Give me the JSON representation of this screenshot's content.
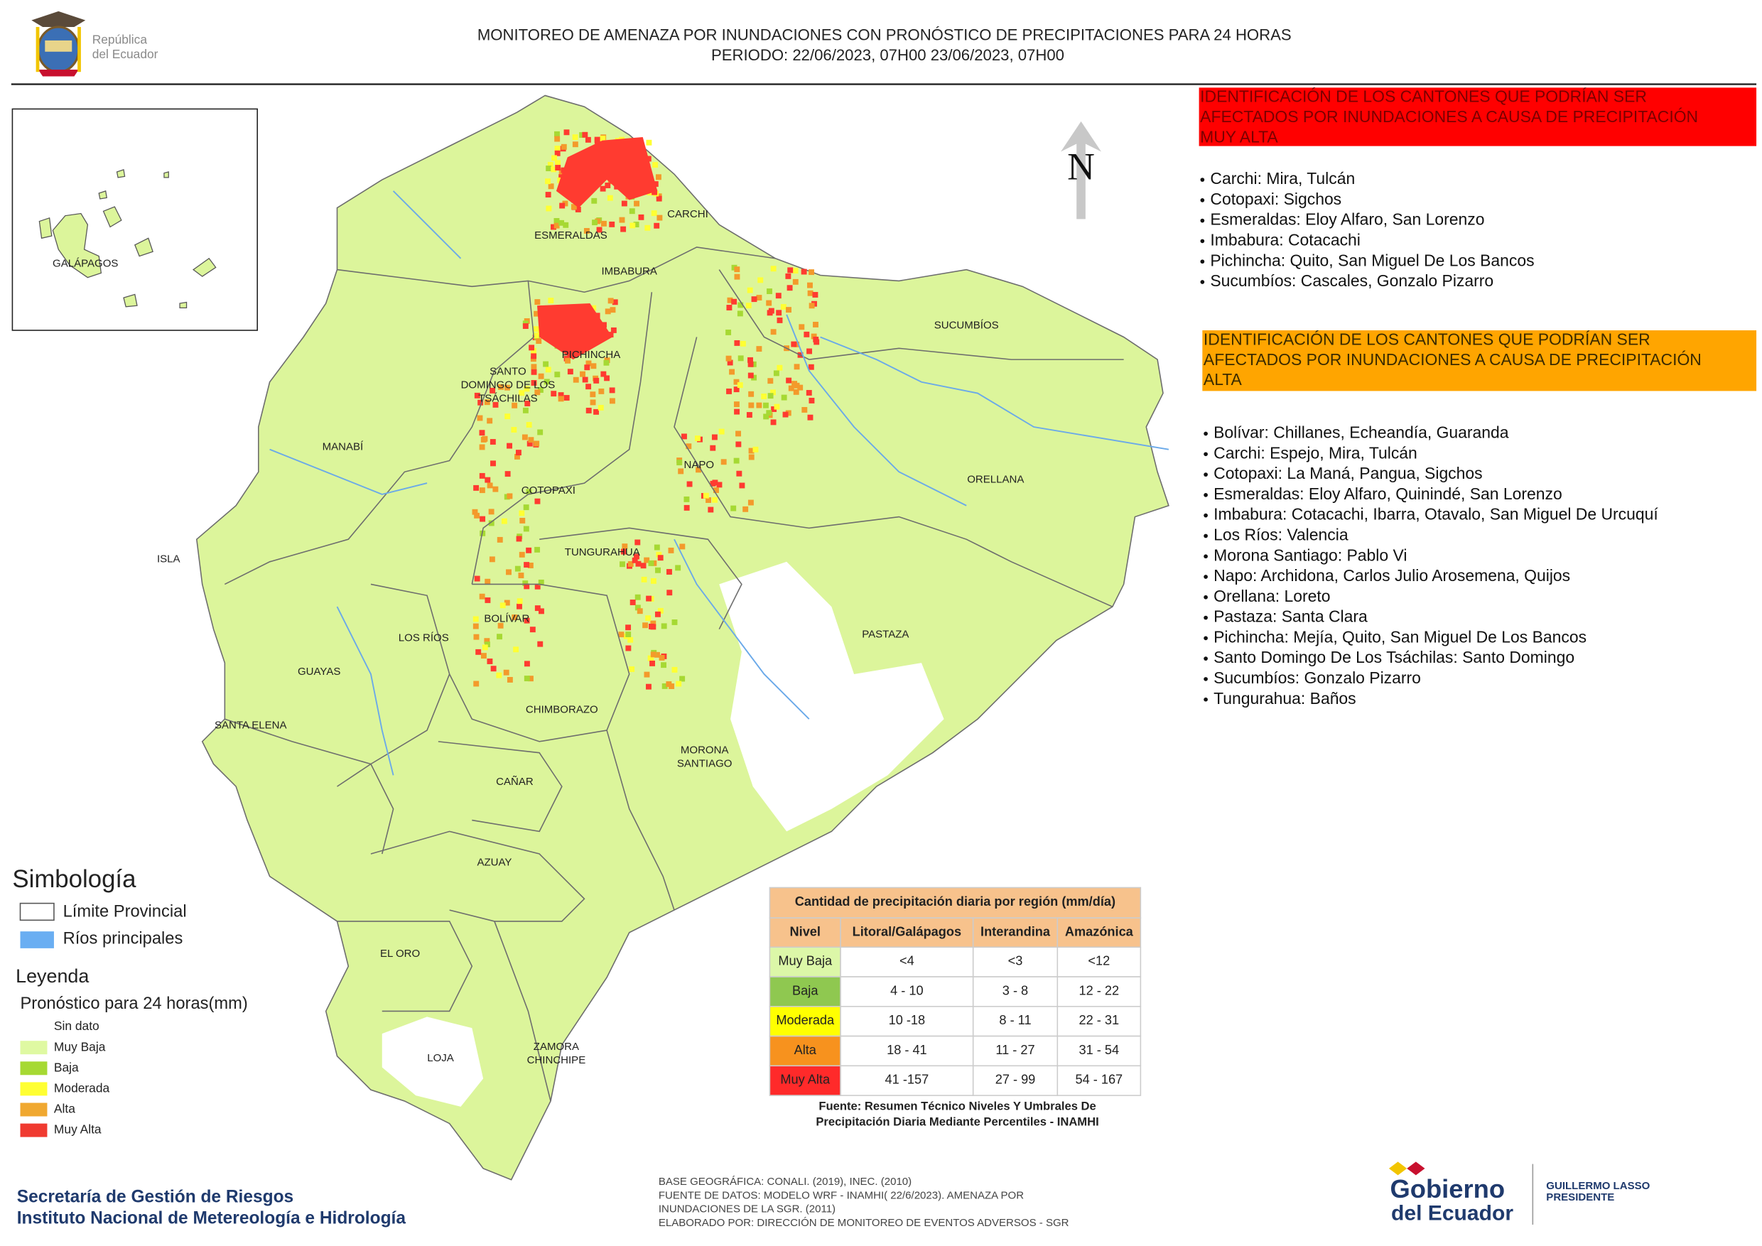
{
  "header": {
    "logo_text": [
      "República",
      "del Ecuador"
    ],
    "title": [
      "MONITOREO DE AMENAZA POR INUNDACIONES  CON PRONÓSTICO DE  PRECIPITACIONES PARA 24 HORAS",
      "PERIODO: 22/06/2023, 07H00 23/06/2023, 07H00"
    ]
  },
  "map": {
    "north": "N",
    "provinces": [
      [
        "GALÁPAGOS"
      ],
      [
        "ESMERALDAS"
      ],
      [
        "CARCHI"
      ],
      [
        "IMBABURA"
      ],
      [
        "SUCUMBÍOS"
      ],
      [
        "PICHINCHA"
      ],
      [
        "SANTO",
        "DOMINGO DE LOS",
        "TSÁCHILAS"
      ],
      [
        "MANABÍ"
      ],
      [
        "NAPO"
      ],
      [
        "ORELLANA"
      ],
      [
        "COTOPAXI"
      ],
      [
        "ISLA"
      ],
      [
        "TUNGURAHUA"
      ],
      [
        "PASTAZA"
      ],
      [
        "BOLÍVAR"
      ],
      [
        "LOS RÍOS"
      ],
      [
        "GUAYAS"
      ],
      [
        "CHIMBORAZO"
      ],
      [
        "SANTA ELENA"
      ],
      [
        "MORONA",
        "SANTIAGO"
      ],
      [
        "CAÑAR"
      ],
      [
        "AZUAY"
      ],
      [
        "EL ORO"
      ],
      [
        "ZAMORA",
        "CHINCHIPE"
      ],
      [
        "LOJA"
      ]
    ]
  },
  "muy_alta": {
    "heading": [
      "IDENTIFICACIÓN DE LOS CANTONES QUE PODRÍAN SER",
      "AFECTADOS POR INUNDACIONES  A CAUSA DE PRECIPITACIÓN",
      "MUY ALTA"
    ],
    "items": [
      "Carchi: Mira, Tulcán",
      "Cotopaxi: Sigchos",
      "Esmeraldas: Eloy Alfaro, San Lorenzo",
      "Imbabura: Cotacachi",
      "Pichincha: Quito, San Miguel De Los Bancos",
      "Sucumbíos: Cascales, Gonzalo Pizarro"
    ]
  },
  "alta": {
    "heading": [
      "IDENTIFICACIÓN DE LOS CANTONES QUE  PODRÍAN SER",
      "AFECTADOS POR INUNDACIONES  A CAUSA DE PRECIPITACIÓN",
      "ALTA"
    ],
    "items": [
      "Bolívar: Chillanes, Echeandía, Guaranda",
      "Carchi: Espejo, Mira, Tulcán",
      "Cotopaxi: La Maná, Pangua, Sigchos",
      "Esmeraldas: Eloy Alfaro, Quinindé, San Lorenzo",
      "Imbabura: Cotacachi, Ibarra, Otavalo, San Miguel De Urcuquí",
      "Los Ríos: Valencia",
      "Morona Santiago: Pablo Vi",
      "Napo: Archidona, Carlos Julio Arosemena, Quijos",
      "Orellana: Loreto",
      "Pastaza: Santa Clara",
      "Pichincha: Mejía, Quito, San Miguel De Los Bancos",
      "Santo Domingo De Los Tsáchilas: Santo Domingo",
      "Sucumbíos: Gonzalo Pizarro",
      "Tungurahua: Baños"
    ]
  },
  "legend": {
    "simbologia": "Simbología",
    "symbols": [
      "Límite Provincial",
      "Ríos principales"
    ],
    "leyenda": "Leyenda",
    "subtitle": "Pronóstico para 24 horas(mm)",
    "items": [
      "Sin dato",
      "Muy Baja",
      "Baja",
      "Moderada",
      "Alta",
      "Muy Alta"
    ]
  },
  "table": {
    "title": "Cantidad de precipitación diaria por región (mm/día)",
    "columns": [
      "Nivel",
      "Litoral/Galápagos",
      "Interandina",
      "Amazónica"
    ],
    "rows": [
      [
        "Muy Baja",
        "<4",
        "<3",
        "<12"
      ],
      [
        "Baja",
        "4 - 10",
        "3 - 8",
        "12 - 22"
      ],
      [
        "Moderada",
        "10 -18",
        "8 - 11",
        "22 - 31"
      ],
      [
        "Alta",
        "18 - 41",
        "11 - 27",
        "31 - 54"
      ],
      [
        "Muy Alta",
        "41 -157",
        "27 - 99",
        "54 - 167"
      ]
    ],
    "source": [
      "Fuente: Resumen Técnico Niveles Y Umbrales De",
      "Precipitación Diaria Mediante Percentiles - INAMHI"
    ]
  },
  "footer": {
    "institutions": [
      "Secretaría de Gestión de Riesgos",
      "Instituto Nacional de Metereología e Hidrología"
    ],
    "credits": [
      "BASE GEOGRÁFICA: CONALI. (2019), INEC. (2010)",
      "FUENTE DE DATOS: MODELO WRF - INAMHI( 22/6/2023).  AMENAZA POR",
      "INUNDACIONES DE LA SGR. (2011)",
      "ELABORADO POR: DIRECCIÓN DE MONITOREO DE EVENTOS ADVERSOS - SGR"
    ],
    "gobierno": [
      "Gobierno",
      "del Ecuador"
    ],
    "president": [
      "GUILLERMO LASSO",
      "PRESIDENTE"
    ]
  }
}
